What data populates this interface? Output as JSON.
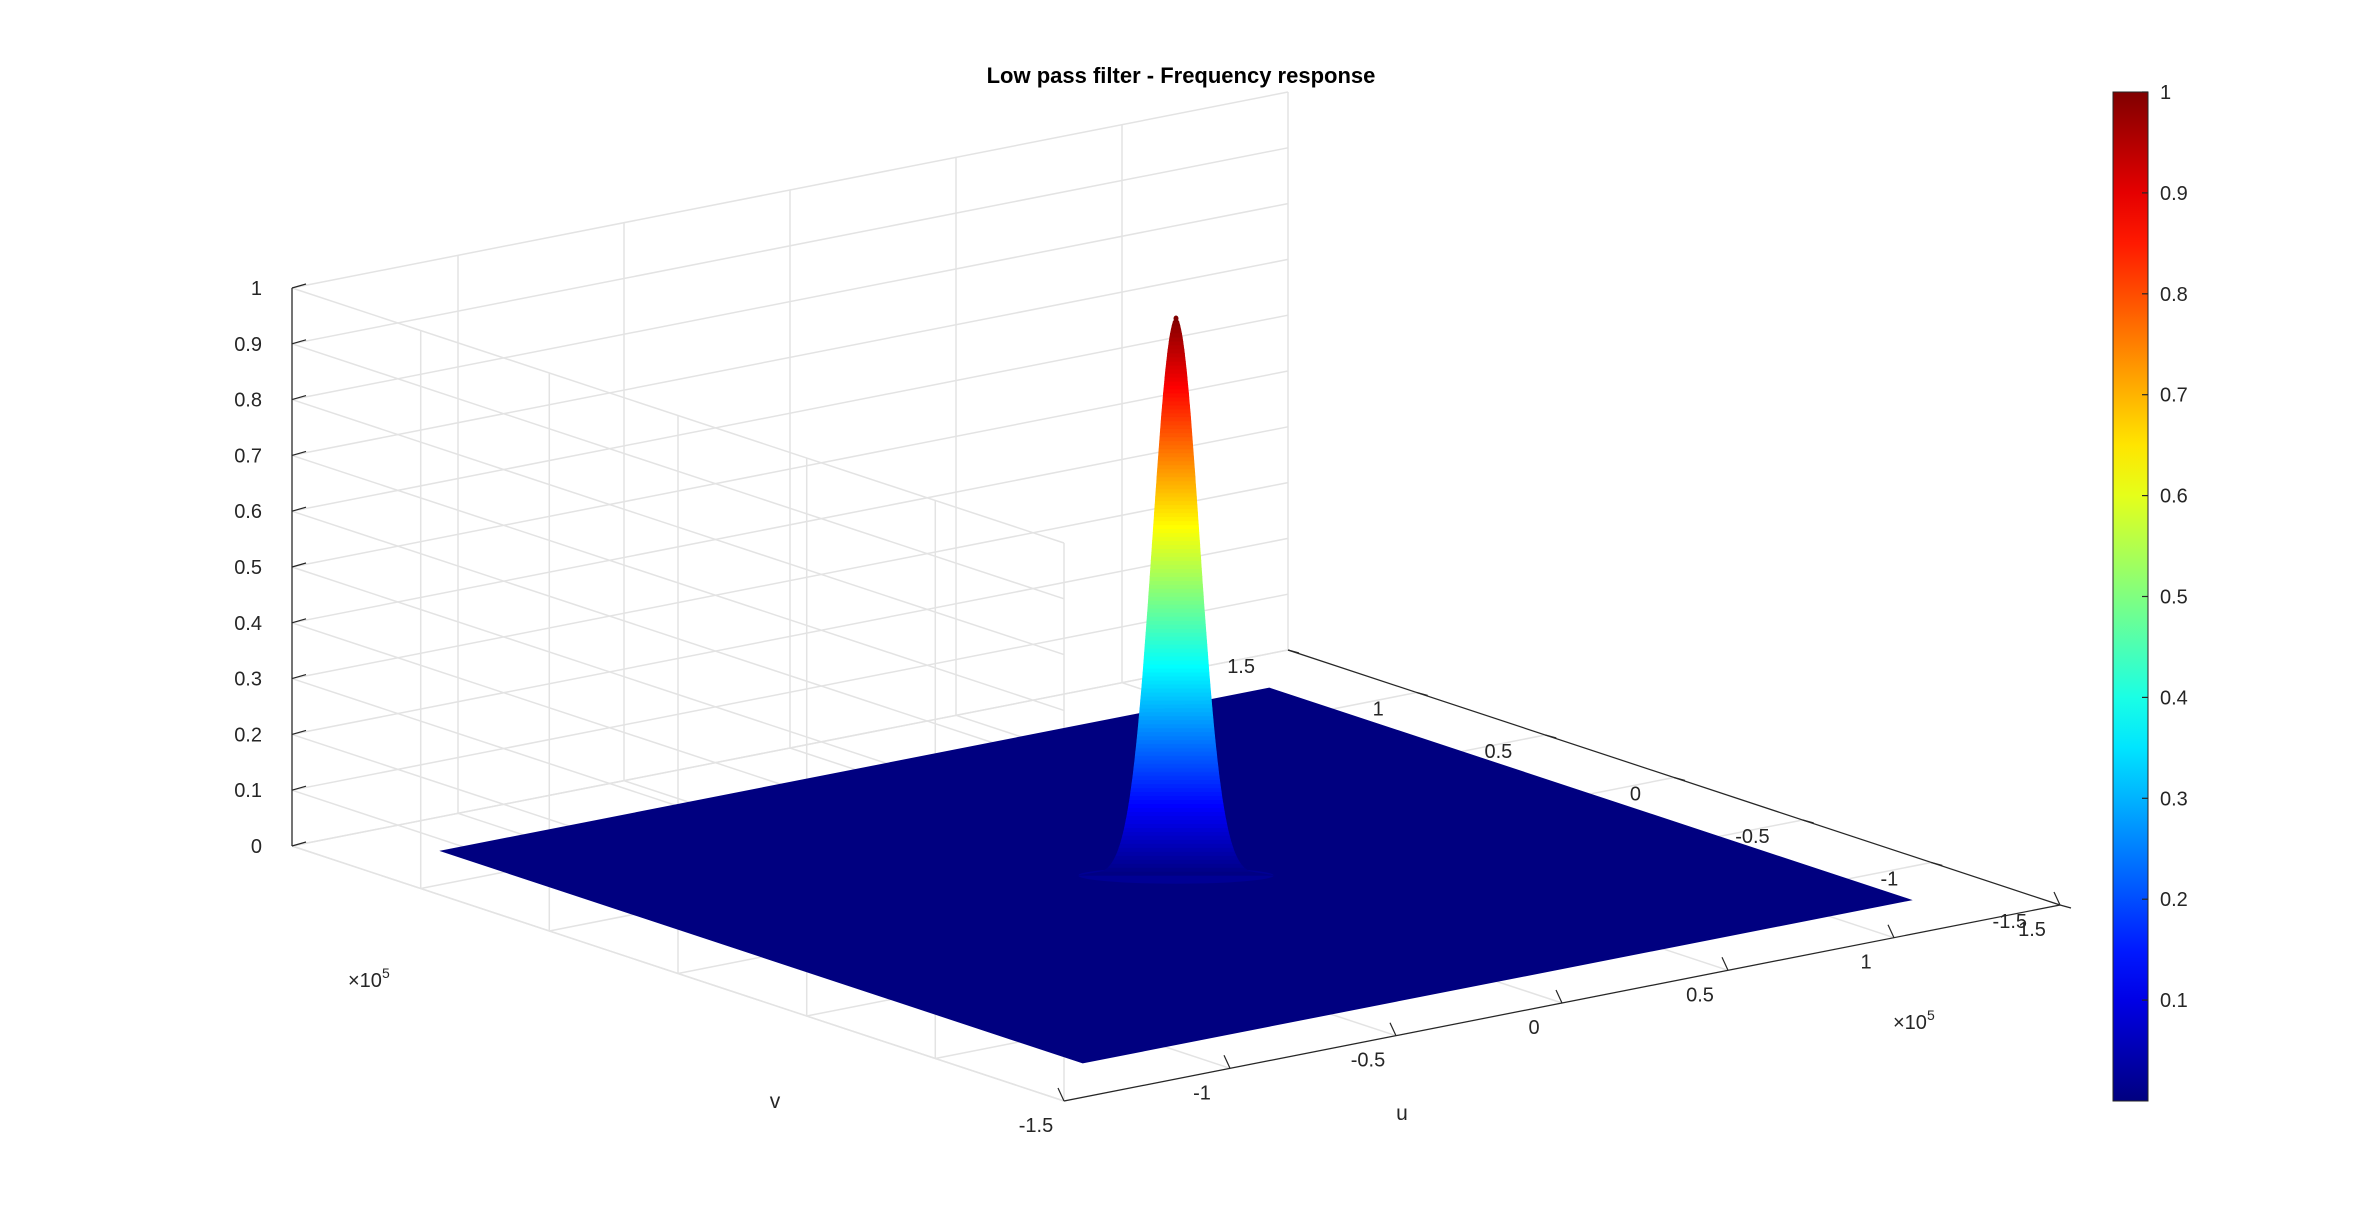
{
  "chart_data": {
    "type": "surface",
    "title": "Low pass filter - Frequency response",
    "xlabel": "u",
    "ylabel": "v",
    "zlabel": "",
    "x_ticks": [
      "-1.5",
      "-1",
      "-0.5",
      "0",
      "0.5",
      "1",
      "1.5"
    ],
    "y_ticks": [
      "-1.5",
      "-1",
      "-0.5",
      "0",
      "0.5",
      "1",
      "1.5"
    ],
    "z_ticks": [
      "0",
      "0.1",
      "0.2",
      "0.3",
      "0.4",
      "0.5",
      "0.6",
      "0.7",
      "0.8",
      "0.9",
      "1"
    ],
    "x_multiplier": "×10",
    "x_exponent": "5",
    "y_multiplier": "×10",
    "y_exponent": "5",
    "xlim": [
      -150000,
      150000
    ],
    "ylim": [
      -150000,
      150000
    ],
    "zlim": [
      0,
      1
    ],
    "surface": {
      "function": "gaussian",
      "center": [
        0,
        0
      ],
      "peak": 1,
      "sigma": 7000,
      "data_extent": [
        -125000,
        125000
      ]
    },
    "colormap": "jet",
    "colorbar": {
      "ticks": [
        "0.1",
        "0.2",
        "0.3",
        "0.4",
        "0.5",
        "0.6",
        "0.7",
        "0.8",
        "0.9",
        "1"
      ],
      "range": [
        0,
        1
      ],
      "placement": "right"
    },
    "grid": true
  }
}
